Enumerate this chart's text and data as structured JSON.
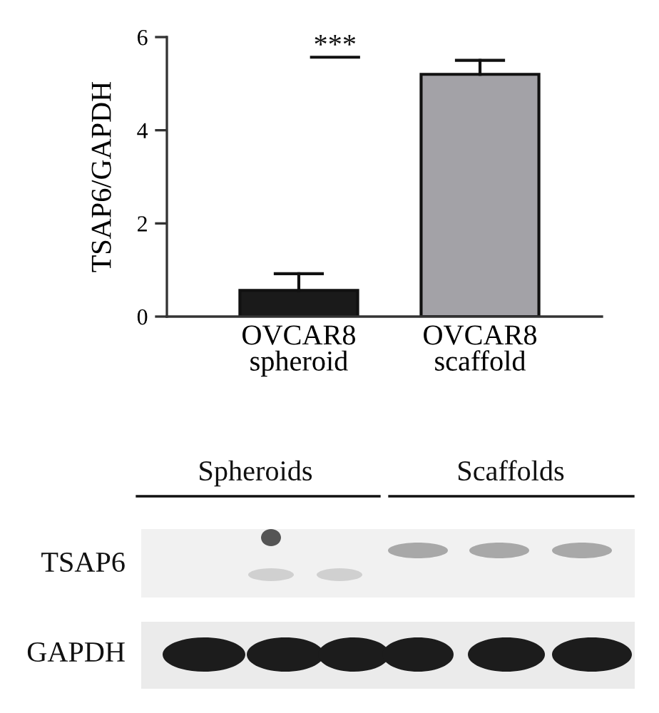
{
  "chart_data": {
    "type": "bar",
    "ylabel": "TSAP6/GAPDH",
    "categories": [
      "OVCAR8\nspheroid",
      "OVCAR8\nscaffold"
    ],
    "values": [
      0.56,
      5.2
    ],
    "colors": [
      "#1a1a1a",
      "#a3a2a7"
    ],
    "errors": [
      [
        0.56,
        0.92
      ],
      [
        5.2,
        5.5
      ]
    ],
    "ylim": [
      0,
      6
    ],
    "yticks": [
      0,
      2,
      4,
      6
    ],
    "annotations": [
      "***",
      "Spheroids",
      "Scaffolds",
      "TSAP6",
      "GAPDH"
    ]
  }
}
